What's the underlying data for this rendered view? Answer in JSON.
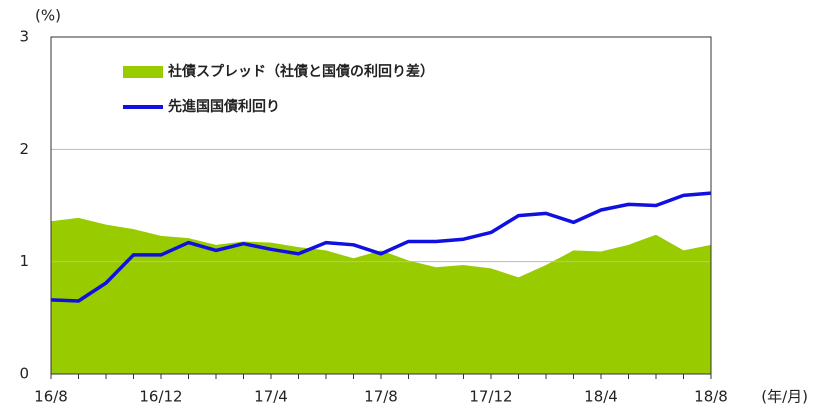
{
  "chart_data": {
    "type": "line",
    "y_label": "(%)",
    "x_label": "(年/月)",
    "categories": [
      "16/8",
      null,
      null,
      null,
      "16/12",
      null,
      null,
      null,
      "17/4",
      null,
      null,
      null,
      "17/8",
      null,
      null,
      null,
      "17/12",
      null,
      null,
      null,
      "18/4",
      null,
      null,
      null,
      "18/8"
    ],
    "series": [
      {
        "name": "社債スプレッド（社債と国債の利回り差）",
        "type": "area",
        "color": "#99cc00",
        "values": [
          1.36,
          1.39,
          1.33,
          1.29,
          1.23,
          1.21,
          1.15,
          1.18,
          1.17,
          1.13,
          1.1,
          1.03,
          1.1,
          1.01,
          0.95,
          0.97,
          0.94,
          0.86,
          0.97,
          1.1,
          1.09,
          1.15,
          1.24,
          1.1,
          1.15
        ]
      },
      {
        "name": "先進国国債利回り",
        "type": "line",
        "color": "#1010e0",
        "values": [
          0.66,
          0.65,
          0.81,
          1.06,
          1.06,
          1.17,
          1.1,
          1.16,
          1.11,
          1.07,
          1.17,
          1.15,
          1.07,
          1.18,
          1.18,
          1.2,
          1.26,
          1.41,
          1.43,
          1.35,
          1.46,
          1.51,
          1.5,
          1.59,
          1.61
        ]
      }
    ],
    "ylim": [
      0,
      3
    ],
    "yticks": [
      0,
      1,
      2,
      3
    ],
    "grid": true,
    "legend": "top-left"
  }
}
